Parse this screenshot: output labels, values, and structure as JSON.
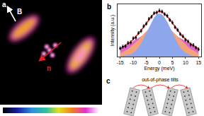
{
  "panel_a": {
    "panel_label": "a",
    "field_label": "B",
    "vector_label": "n"
  },
  "chart_data": {
    "type": "scatter",
    "panel_label": "b",
    "x_label": "Energy (meV)",
    "y_label": "Intensity (a.u.)",
    "x": [
      -15,
      -14,
      -13,
      -12,
      -11,
      -10,
      -9,
      -8,
      -7,
      -6,
      -5,
      -4,
      -3,
      -2,
      -1,
      0,
      1,
      2,
      3,
      4,
      5,
      6,
      7,
      8,
      9,
      10,
      11,
      12,
      13,
      14,
      15
    ],
    "xlim": [
      -16,
      16
    ],
    "xticks": [
      -15,
      -10,
      -5,
      0,
      5,
      10,
      15
    ],
    "ylim": [
      0,
      1
    ],
    "tick_labels": "x",
    "series": [
      {
        "type": "area",
        "color": "#e066c8",
        "values": [
          0.15,
          0.18,
          0.21,
          0.23,
          0.26,
          0.29,
          0.32,
          0.35,
          0.38,
          0.4,
          0.42,
          0.44,
          0.46,
          0.47,
          0.48,
          0.48,
          0.48,
          0.47,
          0.46,
          0.44,
          0.42,
          0.4,
          0.38,
          0.35,
          0.32,
          0.29,
          0.26,
          0.23,
          0.21,
          0.18,
          0.15
        ]
      },
      {
        "type": "area",
        "color": "#f4a27a",
        "values": [
          0.06,
          0.08,
          0.11,
          0.14,
          0.18,
          0.22,
          0.27,
          0.32,
          0.38,
          0.43,
          0.48,
          0.53,
          0.57,
          0.6,
          0.61,
          0.62,
          0.61,
          0.6,
          0.57,
          0.53,
          0.48,
          0.43,
          0.38,
          0.32,
          0.27,
          0.22,
          0.18,
          0.14,
          0.11,
          0.08,
          0.06
        ]
      },
      {
        "type": "area",
        "color": "#8ea6ec",
        "values": [
          0.0,
          0.01,
          0.01,
          0.02,
          0.04,
          0.07,
          0.11,
          0.17,
          0.24,
          0.34,
          0.44,
          0.55,
          0.66,
          0.74,
          0.8,
          0.82,
          0.8,
          0.74,
          0.66,
          0.55,
          0.44,
          0.34,
          0.24,
          0.17,
          0.11,
          0.07,
          0.04,
          0.02,
          0.01,
          0.01,
          0.0
        ]
      },
      {
        "type": "line",
        "color": "#e02020",
        "values": [
          0.15,
          0.18,
          0.21,
          0.24,
          0.28,
          0.33,
          0.38,
          0.44,
          0.5,
          0.57,
          0.64,
          0.71,
          0.77,
          0.82,
          0.85,
          0.86,
          0.85,
          0.82,
          0.77,
          0.71,
          0.64,
          0.57,
          0.5,
          0.44,
          0.38,
          0.33,
          0.28,
          0.24,
          0.21,
          0.18,
          0.15
        ]
      },
      {
        "type": "scatter",
        "color": "#000000",
        "marker": "circle",
        "values": [
          0.16,
          0.19,
          0.2,
          0.26,
          0.27,
          0.35,
          0.36,
          0.45,
          0.49,
          0.58,
          0.63,
          0.72,
          0.76,
          0.83,
          0.84,
          0.88,
          0.86,
          0.81,
          0.78,
          0.7,
          0.65,
          0.56,
          0.51,
          0.43,
          0.39,
          0.32,
          0.29,
          0.23,
          0.22,
          0.17,
          0.14
        ],
        "errors": [
          0.03,
          0.03,
          0.03,
          0.03,
          0.03,
          0.03,
          0.03,
          0.03,
          0.03,
          0.03,
          0.03,
          0.03,
          0.03,
          0.03,
          0.03,
          0.03,
          0.03,
          0.03,
          0.03,
          0.03,
          0.03,
          0.03,
          0.03,
          0.03,
          0.03,
          0.03,
          0.03,
          0.03,
          0.03,
          0.03,
          0.03
        ]
      }
    ]
  },
  "panel_c": {
    "panel_label": "c",
    "title": "out-of-phase tilts"
  }
}
